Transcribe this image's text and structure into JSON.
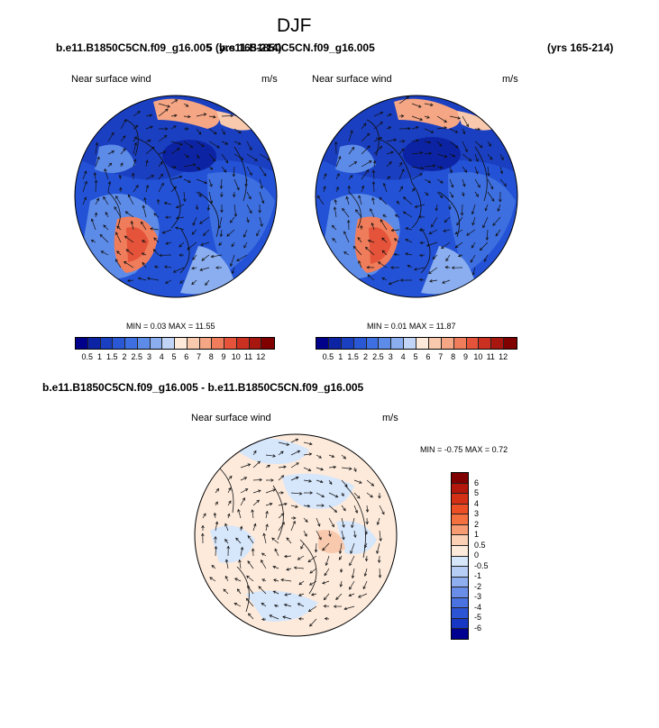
{
  "title": "DJF",
  "header": {
    "left_case": "b.e11.B1850C5CN.f09_g16.005",
    "overlap_text": "5 (yrs 165-214)",
    "right_case": "b.e11.B1850C5CN.f09_g16.005",
    "right_years": "(yrs 165-214)"
  },
  "panel1": {
    "variable": "Near surface wind",
    "units": "m/s",
    "stats_min_label": "MIN =",
    "stats_min": "0.03",
    "stats_max_label": "MAX =",
    "stats_max": "11.55"
  },
  "panel2": {
    "variable": "Near surface wind",
    "units": "m/s",
    "stats_min_label": "MIN =",
    "stats_min": "0.01",
    "stats_max_label": "MAX =",
    "stats_max": "11.87"
  },
  "diff_panel": {
    "case_title": "b.e11.B1850C5CN.f09_g16.005 - b.e11.B1850C5CN.f09_g16.005",
    "variable": "Near surface wind",
    "units": "m/s",
    "stats_min_label": "MIN =",
    "stats_min": "-0.75",
    "stats_max_label": "MAX =",
    "stats_max": "0.72"
  },
  "colorbar_abs": {
    "labels": [
      "0.5",
      "1",
      "1.5",
      "2",
      "2.5",
      "3",
      "4",
      "5",
      "6",
      "7",
      "8",
      "9",
      "10",
      "11",
      "12"
    ],
    "colors": [
      "#00008b",
      "#0c24a4",
      "#1a3fc1",
      "#2a58d4",
      "#3d6fe0",
      "#5d8be8",
      "#8aaeef",
      "#c2d5f7",
      "#fdeadb",
      "#f9c9ad",
      "#f5a684",
      "#ef7d5c",
      "#e5543a",
      "#cc3020",
      "#a8170f",
      "#800000"
    ]
  },
  "colorbar_diff": {
    "labels": [
      "6",
      "5",
      "4",
      "3",
      "2",
      "1",
      "0.5",
      "0",
      "-0.5",
      "-1",
      "-2",
      "-3",
      "-4",
      "-5",
      "-6"
    ],
    "colors": [
      "#800000",
      "#b4170c",
      "#d43016",
      "#ed4f25",
      "#f4703f",
      "#f79b73",
      "#fbd0b5",
      "#fdeadb",
      "#d6e6fb",
      "#b6cdf6",
      "#8eaef0",
      "#6a8ee8",
      "#4a72e0",
      "#2c55d6",
      "#1738c4",
      "#000090"
    ]
  }
}
